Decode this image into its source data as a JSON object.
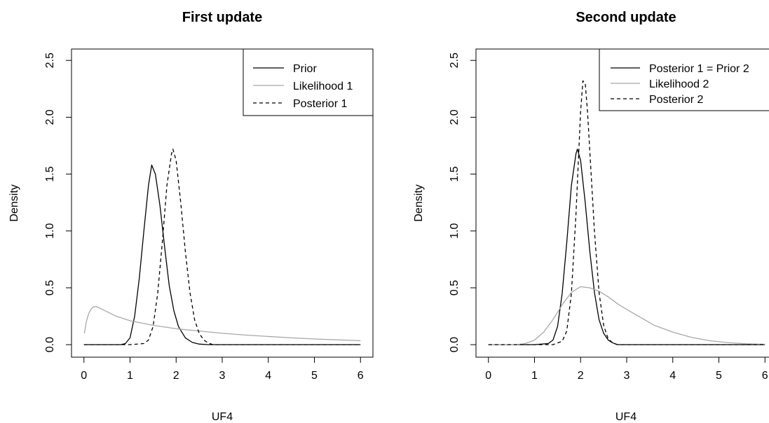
{
  "chart_data": [
    {
      "type": "line",
      "title": "First update",
      "xlabel": "UF4",
      "ylabel": "Density",
      "xlim": [
        -0.27,
        6.27
      ],
      "ylim": [
        -0.11,
        2.6
      ],
      "x_ticks": [
        "0",
        "1",
        "2",
        "3",
        "4",
        "5",
        "6"
      ],
      "y_ticks": [
        "0.0",
        "0.5",
        "1.0",
        "1.5",
        "2.0",
        "2.5"
      ],
      "legend_position": "top-right",
      "colors": {
        "Prior": "#000000",
        "Likelihood 1": "#a8a8a8",
        "Posterior 1": "#000000"
      },
      "series": [
        {
          "name": "Prior",
          "style": "solid",
          "x": [
            0,
            0.5,
            0.8,
            0.9,
            1.0,
            1.1,
            1.2,
            1.3,
            1.4,
            1.47,
            1.55,
            1.65,
            1.75,
            1.85,
            1.95,
            2.05,
            2.2,
            2.35,
            2.5,
            2.7,
            3.0,
            4.0,
            5.0,
            6.0
          ],
          "y": [
            0,
            0,
            0.0,
            0.01,
            0.06,
            0.25,
            0.58,
            1.0,
            1.4,
            1.58,
            1.5,
            1.22,
            0.86,
            0.52,
            0.3,
            0.16,
            0.06,
            0.02,
            0.005,
            0,
            0,
            0,
            0,
            0
          ]
        },
        {
          "name": "Likelihood 1",
          "style": "solid",
          "x": [
            0.01,
            0.05,
            0.1,
            0.15,
            0.2,
            0.25,
            0.3,
            0.4,
            0.5,
            0.7,
            1.0,
            1.5,
            2.0,
            2.5,
            3.0,
            3.5,
            4.0,
            4.5,
            5.0,
            5.5,
            6.0
          ],
          "y": [
            0.1,
            0.2,
            0.27,
            0.31,
            0.33,
            0.335,
            0.33,
            0.31,
            0.29,
            0.25,
            0.21,
            0.17,
            0.14,
            0.12,
            0.1,
            0.085,
            0.072,
            0.06,
            0.05,
            0.042,
            0.035
          ]
        },
        {
          "name": "Posterior 1",
          "style": "dashed",
          "x": [
            0,
            1.0,
            1.3,
            1.4,
            1.5,
            1.6,
            1.7,
            1.8,
            1.9,
            1.93,
            2.0,
            2.1,
            2.2,
            2.3,
            2.4,
            2.5,
            2.6,
            2.7,
            2.8,
            3.0,
            4.0,
            5.0,
            6.0
          ],
          "y": [
            0,
            0,
            0.01,
            0.04,
            0.16,
            0.45,
            0.9,
            1.4,
            1.68,
            1.72,
            1.62,
            1.25,
            0.82,
            0.46,
            0.22,
            0.1,
            0.04,
            0.015,
            0.0,
            0,
            0,
            0,
            0
          ]
        }
      ]
    },
    {
      "type": "line",
      "title": "Second update",
      "xlabel": "UF4",
      "ylabel": "Density",
      "xlim": [
        -0.27,
        6.27
      ],
      "ylim": [
        -0.11,
        2.6
      ],
      "x_ticks": [
        "0",
        "1",
        "2",
        "3",
        "4",
        "5",
        "6"
      ],
      "y_ticks": [
        "0.0",
        "0.5",
        "1.0",
        "1.5",
        "2.0",
        "2.5"
      ],
      "legend_position": "top-right",
      "colors": {
        "Posterior 1 = Prior 2": "#000000",
        "Likelihood 2": "#a8a8a8",
        "Posterior 2": "#000000"
      },
      "series": [
        {
          "name": "Posterior 1 = Prior 2",
          "style": "solid",
          "x": [
            0,
            1.0,
            1.3,
            1.4,
            1.5,
            1.6,
            1.7,
            1.8,
            1.9,
            1.93,
            2.0,
            2.1,
            2.2,
            2.3,
            2.4,
            2.5,
            2.6,
            2.7,
            2.8,
            3.0,
            4.0,
            5.0,
            6.0
          ],
          "y": [
            0,
            0,
            0.01,
            0.04,
            0.16,
            0.45,
            0.9,
            1.4,
            1.68,
            1.72,
            1.62,
            1.25,
            0.82,
            0.46,
            0.22,
            0.1,
            0.04,
            0.015,
            0.0,
            0,
            0,
            0,
            0
          ]
        },
        {
          "name": "Likelihood 2",
          "style": "solid",
          "x": [
            0,
            0.6,
            0.8,
            1.0,
            1.2,
            1.4,
            1.6,
            1.8,
            2.0,
            2.2,
            2.4,
            2.6,
            2.8,
            3.0,
            3.3,
            3.6,
            4.0,
            4.4,
            4.8,
            5.2,
            5.6,
            6.0
          ],
          "y": [
            0,
            0,
            0.01,
            0.04,
            0.11,
            0.22,
            0.35,
            0.46,
            0.51,
            0.5,
            0.47,
            0.42,
            0.36,
            0.31,
            0.24,
            0.17,
            0.11,
            0.065,
            0.035,
            0.018,
            0.008,
            0.004
          ]
        },
        {
          "name": "Posterior 2",
          "style": "dashed",
          "x": [
            0,
            1.4,
            1.6,
            1.7,
            1.8,
            1.9,
            1.95,
            2.0,
            2.05,
            2.1,
            2.15,
            2.2,
            2.3,
            2.4,
            2.5,
            2.6,
            2.7,
            2.8,
            3.0,
            4.0,
            5.0,
            6.0
          ],
          "y": [
            0,
            0,
            0.03,
            0.12,
            0.45,
            1.15,
            1.6,
            2.05,
            2.32,
            2.3,
            2.05,
            1.7,
            1.0,
            0.46,
            0.17,
            0.05,
            0.015,
            0.0,
            0,
            0,
            0,
            0
          ]
        }
      ]
    }
  ]
}
